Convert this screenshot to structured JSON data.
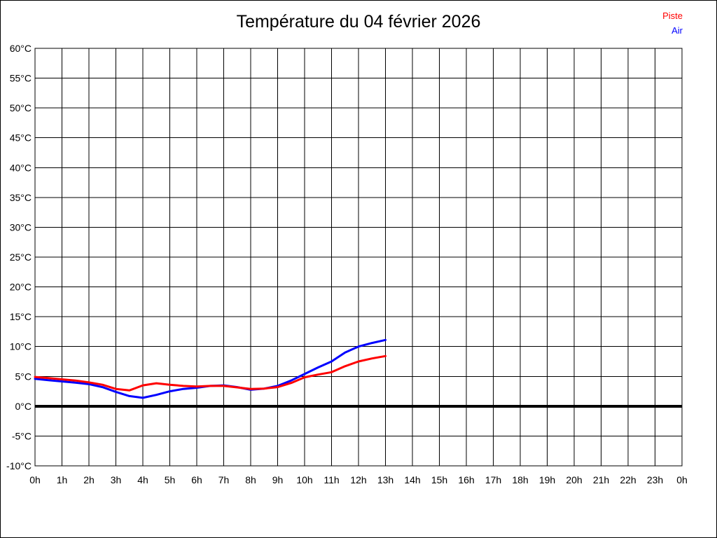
{
  "title": "Température du 04 février 2026",
  "legend": {
    "position": "top-right",
    "items": [
      {
        "label": "Piste",
        "color": "#ff0000"
      },
      {
        "label": "Air",
        "color": "#0000ff"
      }
    ]
  },
  "chart_data": {
    "type": "line",
    "title": "Température du 04 février 2026",
    "xlabel": "",
    "ylabel": "",
    "xlim": [
      0,
      24
    ],
    "ylim": [
      -10,
      60
    ],
    "grid": true,
    "grid_color": "#000000",
    "zero_line_y": 0,
    "legend_position": "top-right",
    "yticks": [
      {
        "value": 60,
        "label": "60°C"
      },
      {
        "value": 55,
        "label": "55°C"
      },
      {
        "value": 50,
        "label": "50°C"
      },
      {
        "value": 45,
        "label": "45°C"
      },
      {
        "value": 40,
        "label": "40°C"
      },
      {
        "value": 35,
        "label": "35°C"
      },
      {
        "value": 30,
        "label": "30°C"
      },
      {
        "value": 25,
        "label": "25°C"
      },
      {
        "value": 20,
        "label": "20°C"
      },
      {
        "value": 15,
        "label": "15°C"
      },
      {
        "value": 10,
        "label": "10°C"
      },
      {
        "value": 5,
        "label": "5°C"
      },
      {
        "value": 0,
        "label": "0°C"
      },
      {
        "value": -5,
        "label": "-5°C"
      },
      {
        "value": -10,
        "label": "-10°C"
      }
    ],
    "xticks": [
      {
        "value": 0,
        "label": "0h"
      },
      {
        "value": 1,
        "label": "1h"
      },
      {
        "value": 2,
        "label": "2h"
      },
      {
        "value": 3,
        "label": "3h"
      },
      {
        "value": 4,
        "label": "4h"
      },
      {
        "value": 5,
        "label": "5h"
      },
      {
        "value": 6,
        "label": "6h"
      },
      {
        "value": 7,
        "label": "7h"
      },
      {
        "value": 8,
        "label": "8h"
      },
      {
        "value": 9,
        "label": "9h"
      },
      {
        "value": 10,
        "label": "10h"
      },
      {
        "value": 11,
        "label": "11h"
      },
      {
        "value": 12,
        "label": "12h"
      },
      {
        "value": 13,
        "label": "13h"
      },
      {
        "value": 14,
        "label": "14h"
      },
      {
        "value": 15,
        "label": "15h"
      },
      {
        "value": 16,
        "label": "16h"
      },
      {
        "value": 17,
        "label": "17h"
      },
      {
        "value": 18,
        "label": "18h"
      },
      {
        "value": 19,
        "label": "19h"
      },
      {
        "value": 20,
        "label": "20h"
      },
      {
        "value": 21,
        "label": "21h"
      },
      {
        "value": 22,
        "label": "22h"
      },
      {
        "value": 23,
        "label": "23h"
      },
      {
        "value": 24,
        "label": "0h"
      }
    ],
    "x": [
      0,
      0.5,
      1,
      1.5,
      2,
      2.5,
      3,
      3.5,
      4,
      4.5,
      5,
      5.5,
      6,
      6.5,
      7,
      7.5,
      8,
      8.5,
      9,
      9.5,
      10,
      10.5,
      11,
      11.5,
      12,
      12.5,
      13
    ],
    "series": [
      {
        "name": "Piste",
        "color": "#ff0000",
        "values": [
          4.9,
          4.7,
          4.5,
          4.3,
          4.0,
          3.6,
          2.9,
          2.65,
          3.5,
          3.85,
          3.6,
          3.4,
          3.3,
          3.4,
          3.4,
          3.15,
          2.9,
          2.95,
          3.2,
          3.9,
          4.85,
          5.3,
          5.7,
          6.7,
          7.5,
          8.0,
          8.4
        ]
      },
      {
        "name": "Air",
        "color": "#0000ff",
        "values": [
          4.6,
          4.35,
          4.15,
          3.95,
          3.7,
          3.2,
          2.4,
          1.7,
          1.4,
          1.9,
          2.5,
          2.9,
          3.1,
          3.4,
          3.5,
          3.2,
          2.75,
          2.95,
          3.4,
          4.3,
          5.4,
          6.5,
          7.5,
          9.0,
          10.0,
          10.6,
          11.1
        ]
      }
    ]
  }
}
